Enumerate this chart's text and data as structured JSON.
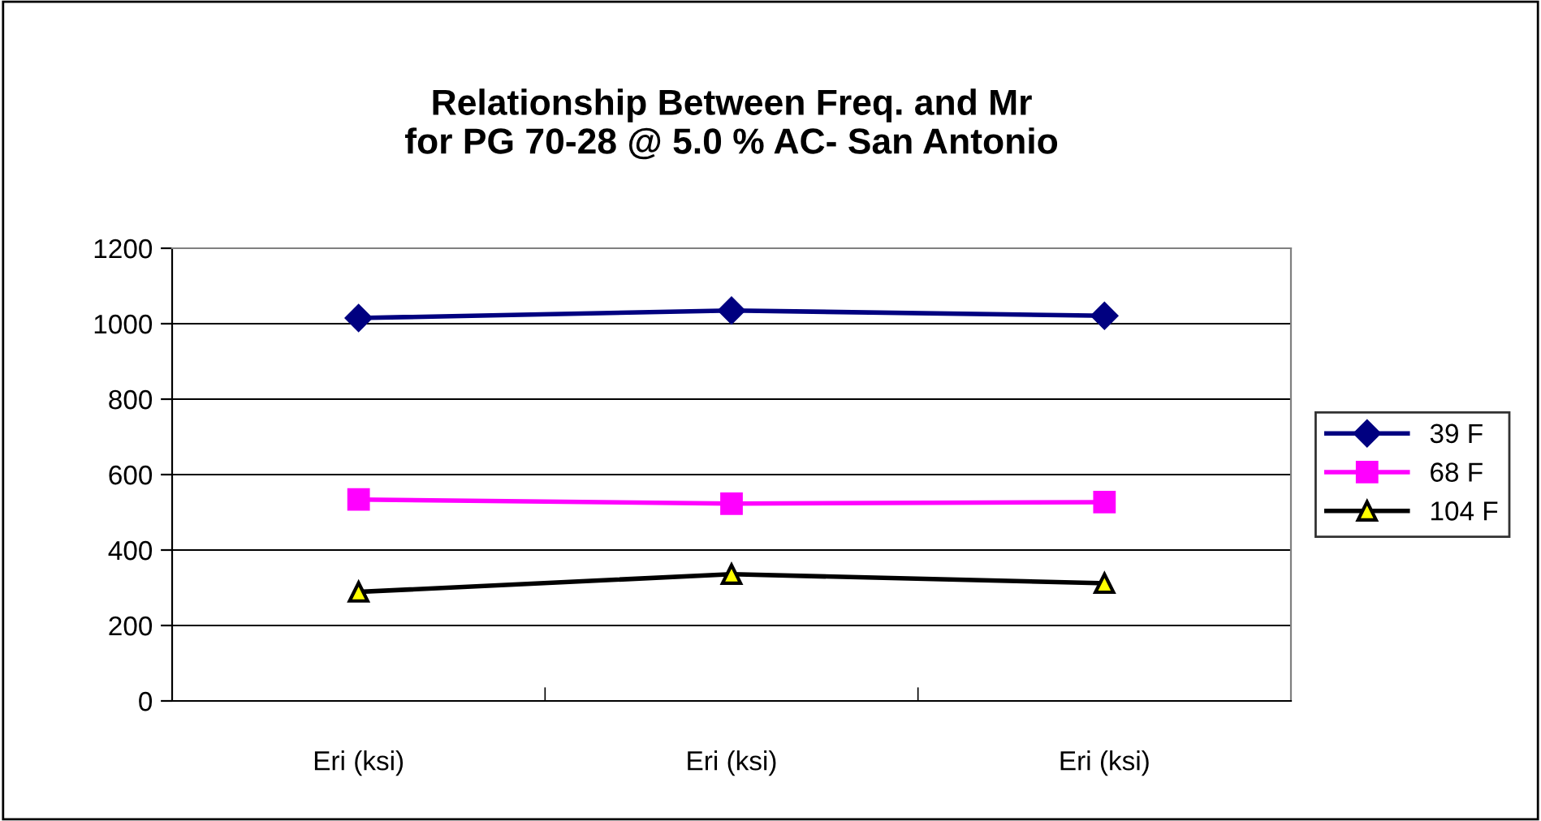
{
  "chart_data": {
    "type": "line",
    "title": "Relationship Between Freq. and Mr\nfor PG 70-28 @ 5.0 % AC- San Antonio",
    "categories": [
      "Eri (ksi)",
      "Eri (ksi)",
      "Eri (ksi)"
    ],
    "series": [
      {
        "name": "39 F",
        "color": "#000080",
        "marker": "diamond",
        "values": [
          1015,
          1035,
          1021
        ]
      },
      {
        "name": "68 F",
        "color": "#ff00ff",
        "marker": "square",
        "values": [
          534,
          523,
          527
        ]
      },
      {
        "name": "104 F",
        "color": "#000000",
        "marker": "triangle",
        "values": [
          289,
          336,
          312
        ]
      }
    ],
    "ylim": [
      0,
      1200
    ],
    "yticks": [
      0,
      200,
      400,
      600,
      800,
      1000,
      1200
    ],
    "grid": "y",
    "legend": "right",
    "line_style": "solid"
  }
}
